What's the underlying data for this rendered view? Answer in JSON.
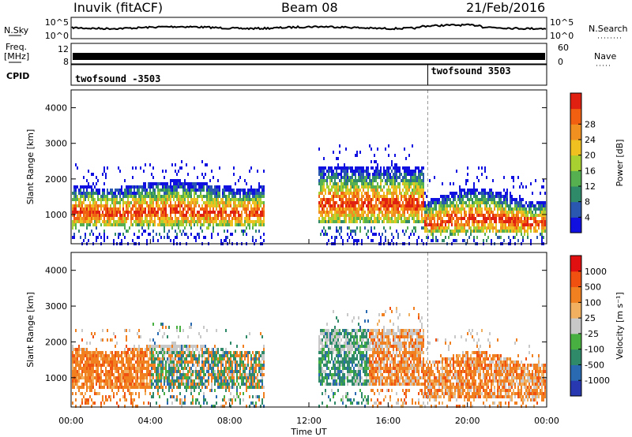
{
  "header": {
    "station": "Inuvik (fitACF)",
    "beam": "Beam 08",
    "date": "21/Feb/2016"
  },
  "side_labels": {
    "nsky": "N.Sky",
    "nsearch": "N.Search",
    "freq": "Freq.",
    "mhz": "[MHz]",
    "nave": "Nave",
    "cpid": "CPID"
  },
  "noise_panel": {
    "left_ticks": [
      "10^5",
      "10^0"
    ],
    "right_ticks": [
      "10^5",
      "10^0"
    ]
  },
  "freq_panel": {
    "left_ticks": [
      "12",
      "8"
    ],
    "right_ticks": [
      "60",
      "0"
    ]
  },
  "cpid_panel": {
    "segments": [
      {
        "label": "twofsound -3503",
        "start_hour": 0
      },
      {
        "label": "twofsound 3503",
        "start_hour": 18
      }
    ]
  },
  "chart_data": [
    {
      "type": "heatmap",
      "name": "power",
      "ylabel": "Slant Range [km]",
      "ylim": [
        180,
        4500
      ],
      "yticks": [
        1000,
        2000,
        3000,
        4000
      ],
      "xlim": [
        0,
        24
      ],
      "colorbar": {
        "label": "Power [dB]",
        "ticks": [
          "4",
          "8",
          "12",
          "16",
          "20",
          "24",
          "28"
        ],
        "colors": [
          "#1010e0",
          "#2a58b0",
          "#2f8a6a",
          "#56b050",
          "#a8d030",
          "#f0c020",
          "#f09020",
          "#f06010",
          "#e02010"
        ]
      }
    },
    {
      "type": "heatmap",
      "name": "velocity",
      "ylabel": "Slant Range [km]",
      "ylim": [
        180,
        4500
      ],
      "yticks": [
        1000,
        2000,
        3000,
        4000
      ],
      "xlim": [
        0,
        24
      ],
      "xlabel": "Time UT",
      "xticks": [
        "00:00",
        "04:00",
        "08:00",
        "12:00",
        "16:00",
        "20:00",
        "00:00"
      ],
      "colorbar": {
        "label": "Velocity [m s⁻¹]",
        "ticks": [
          "1000",
          "500",
          "100",
          "25",
          "-25",
          "-100",
          "-500",
          "-1000"
        ],
        "colors": [
          "#2838b0",
          "#2a6ab0",
          "#2f8a6a",
          "#48b040",
          "#c8c8c8",
          "#f0b060",
          "#f08020",
          "#f05010",
          "#e01010"
        ]
      }
    }
  ]
}
